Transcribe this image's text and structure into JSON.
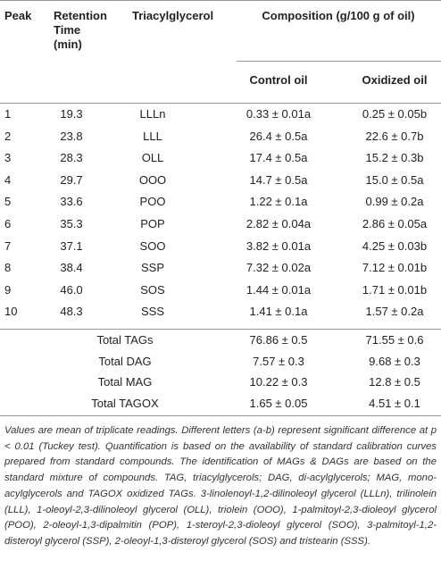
{
  "table": {
    "header": {
      "peak": "Peak",
      "retention": "Retention Time (min)",
      "tag": "Triacylglycerol",
      "composition": "Composition (g/100 g of oil)",
      "control": "Control oil",
      "oxidized": "Oxidized oil"
    },
    "rows": [
      [
        "1",
        "19.3",
        "LLLn",
        "0.33 ± 0.01a",
        "0.25 ± 0.05b"
      ],
      [
        "2",
        "23.8",
        "LLL",
        "26.4 ± 0.5a",
        "22.6 ± 0.7b"
      ],
      [
        "3",
        "28.3",
        "OLL",
        "17.4 ± 0.5a",
        "15.2 ± 0.3b"
      ],
      [
        "4",
        "29.7",
        "OOO",
        "14.7 ± 0.5a",
        "15.0 ± 0.5a"
      ],
      [
        "5",
        "33.6",
        "POO",
        "1.22 ± 0.1a",
        "0.99 ± 0.2a"
      ],
      [
        "6",
        "35.3",
        "POP",
        "2.82 ± 0.04a",
        "2.86 ± 0.05a"
      ],
      [
        "7",
        "37.1",
        "SOO",
        "3.82 ± 0.01a",
        "4.25 ± 0.03b"
      ],
      [
        "8",
        "38.4",
        "SSP",
        "7.32 ± 0.02a",
        "7.12 ± 0.01b"
      ],
      [
        "9",
        "46.0",
        "SOS",
        "1.44 ± 0.01a",
        "1.71 ± 0.01b"
      ],
      [
        "10",
        "48.3",
        "SSS",
        "1.41 ± 0.1a",
        "1.57 ± 0.2a"
      ]
    ],
    "totals": [
      [
        "Total TAGs",
        "76.86 ± 0.5",
        "71.55 ± 0.6"
      ],
      [
        "Total DAG",
        "7.57 ± 0.3",
        "9.68 ± 0.3"
      ],
      [
        "Total MAG",
        "10.22 ± 0.3",
        "12.8 ± 0.5"
      ],
      [
        "Total TAGOX",
        "1.65 ± 0.05",
        "4.51 ± 0.1"
      ]
    ],
    "footnote": "Values are mean of triplicate readings. Different letters (a-b) represent significant difference at p < 0.01 (Tuckey test). Quantification is based on the availability of standard calibration curves prepared from standard compounds. The identification of MAGs & DAGs are based on the standard mixture of compounds. TAG, triacylglycerols; DAG, di-acylglycerols; MAG, mono-acylglycerols and TAGOX oxidized TAGs. 3-linolenoyl-1,2-dilinoleoyl glycerol (LLLn), trilinolein (LLL), 1-oleoyl-2,3-dilinoleoyl glycerol (OLL), triolein (OOO), 1-palmitoyl-2,3-dioleoyl glycerol (POO), 2-oleoyl-1,3-dipalmitin (POP), 1-steroyl-2,3-dioleoyl glycerol (SOO), 3-palmitoyl-1,2-disteroyl glycerol (SSP), 2-oleoyl-1,3-disteroyl glycerol (SOS) and tristearin (SSS)."
  }
}
